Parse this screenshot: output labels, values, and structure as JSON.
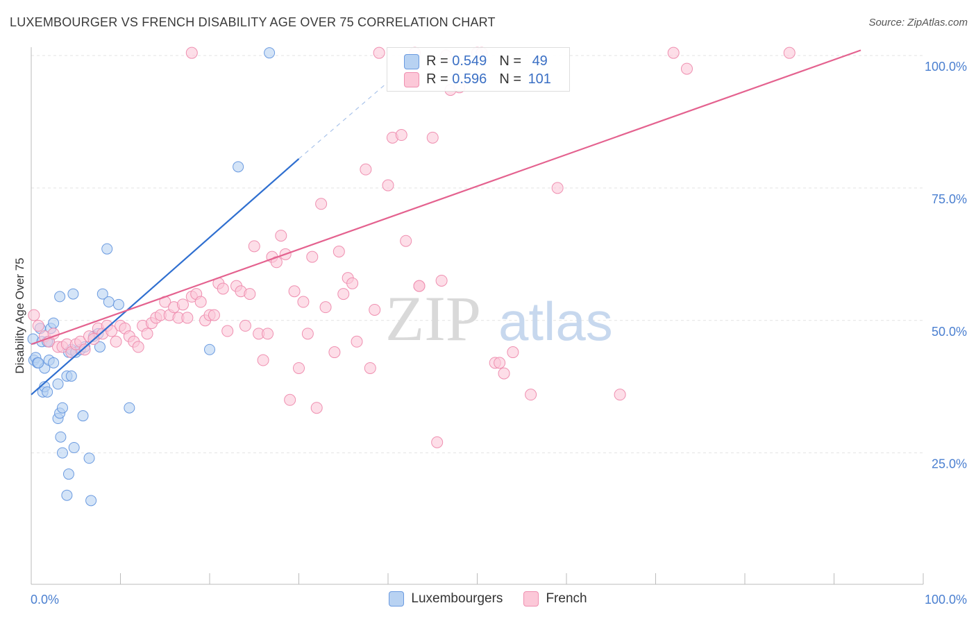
{
  "title": "LUXEMBOURGER VS FRENCH DISABILITY AGE OVER 75 CORRELATION CHART",
  "source": "Source: ZipAtlas.com",
  "watermark": {
    "zip": "ZIP",
    "atlas": "atlas"
  },
  "stats": [
    {
      "r_label": "R = ",
      "r": "0.549",
      "n_label": "N = ",
      "n": "49",
      "color": "#4a86d8"
    },
    {
      "r_label": "R = ",
      "r": "0.596",
      "n_label": "N = ",
      "n": "101",
      "color": "#f06aa0"
    }
  ],
  "legend": [
    {
      "label": "Luxembourgers",
      "fill": "#b8d2f2",
      "stroke": "#6a9ae0"
    },
    {
      "label": "French",
      "fill": "#fcc8d8",
      "stroke": "#ef8fb0"
    }
  ],
  "chart_data": {
    "type": "scatter",
    "title": "LUXEMBOURGER VS FRENCH DISABILITY AGE OVER 75 CORRELATION CHART",
    "xlabel": "",
    "ylabel": "Disability Age Over 75",
    "xlim": [
      0,
      100
    ],
    "ylim": [
      0,
      102
    ],
    "x_ticks": [
      "0.0%",
      "100.0%"
    ],
    "y_ticks": [
      {
        "value": 25,
        "label": "25.0%"
      },
      {
        "value": 50,
        "label": "50.0%"
      },
      {
        "value": 75,
        "label": "75.0%"
      },
      {
        "value": 100,
        "label": "100.0%"
      }
    ],
    "grid": true,
    "series": [
      {
        "name": "Luxembourgers",
        "color": "#4a86d8",
        "fill": "#b8d2f2",
        "points": [
          [
            0.2,
            46.5
          ],
          [
            0.3,
            42.5
          ],
          [
            0.5,
            43
          ],
          [
            0.7,
            42
          ],
          [
            1,
            48.5
          ],
          [
            1.2,
            46
          ],
          [
            1.3,
            36.5
          ],
          [
            1.5,
            41
          ],
          [
            1.5,
            37.5
          ],
          [
            1.8,
            36.5
          ],
          [
            2,
            46
          ],
          [
            2,
            42.5
          ],
          [
            2.2,
            48.5
          ],
          [
            2.5,
            42
          ],
          [
            2.5,
            49.5
          ],
          [
            3,
            38
          ],
          [
            3,
            31.5
          ],
          [
            3.2,
            32.5
          ],
          [
            3.2,
            54.5
          ],
          [
            3.3,
            28
          ],
          [
            3.5,
            25
          ],
          [
            3.5,
            33.5
          ],
          [
            4,
            17
          ],
          [
            4.2,
            21
          ],
          [
            4,
            39.5
          ],
          [
            4.2,
            44
          ],
          [
            4.5,
            39.5
          ],
          [
            4.5,
            44.5
          ],
          [
            4.7,
            55
          ],
          [
            4.8,
            26
          ],
          [
            5,
            44
          ],
          [
            5.5,
            44.5
          ],
          [
            5.8,
            32
          ],
          [
            6,
            45
          ],
          [
            6.5,
            24
          ],
          [
            6.7,
            16
          ],
          [
            7,
            47
          ],
          [
            7.5,
            47.5
          ],
          [
            7.7,
            45
          ],
          [
            8,
            55
          ],
          [
            8.5,
            63.5
          ],
          [
            8.7,
            53.5
          ],
          [
            9.8,
            53
          ],
          [
            11,
            33.5
          ],
          [
            20,
            44.5
          ],
          [
            23.2,
            79
          ],
          [
            26.7,
            100.5
          ],
          [
            0.8,
            42
          ],
          [
            1.8,
            46
          ]
        ]
      },
      {
        "name": "French",
        "color": "#e86a9a",
        "fill": "#fcc8d8",
        "points": [
          [
            0.3,
            51
          ],
          [
            0.8,
            49
          ],
          [
            1.5,
            47
          ],
          [
            2,
            46
          ],
          [
            2.5,
            47.5
          ],
          [
            3,
            45
          ],
          [
            3.5,
            45
          ],
          [
            4,
            45.5
          ],
          [
            4.5,
            44
          ],
          [
            5,
            45.5
          ],
          [
            5.5,
            46
          ],
          [
            6,
            44.5
          ],
          [
            6.5,
            47
          ],
          [
            7,
            46.5
          ],
          [
            7.5,
            48.5
          ],
          [
            8,
            47.5
          ],
          [
            8.5,
            49
          ],
          [
            9,
            48
          ],
          [
            9.5,
            46
          ],
          [
            10,
            49
          ],
          [
            10.5,
            48.5
          ],
          [
            11,
            47
          ],
          [
            11.5,
            46
          ],
          [
            12,
            45
          ],
          [
            12.5,
            49
          ],
          [
            13,
            47.5
          ],
          [
            13.5,
            49.5
          ],
          [
            14,
            50.5
          ],
          [
            14.5,
            51
          ],
          [
            15,
            53.5
          ],
          [
            15.5,
            51
          ],
          [
            16,
            52.5
          ],
          [
            16.5,
            50.5
          ],
          [
            17,
            53
          ],
          [
            17.5,
            50.5
          ],
          [
            18,
            54.5
          ],
          [
            18.5,
            55
          ],
          [
            19,
            53.5
          ],
          [
            19.5,
            50
          ],
          [
            20,
            51
          ],
          [
            20.5,
            51
          ],
          [
            21,
            57
          ],
          [
            21.5,
            56
          ],
          [
            22,
            48
          ],
          [
            23,
            56.5
          ],
          [
            23.5,
            55.5
          ],
          [
            24,
            49
          ],
          [
            24.5,
            55
          ],
          [
            25,
            64
          ],
          [
            25.5,
            47.5
          ],
          [
            26,
            42.5
          ],
          [
            26.5,
            47.5
          ],
          [
            27,
            62
          ],
          [
            27.5,
            61
          ],
          [
            28,
            66
          ],
          [
            28.5,
            62.5
          ],
          [
            29,
            35
          ],
          [
            29.5,
            55.5
          ],
          [
            30,
            41
          ],
          [
            30.5,
            53.5
          ],
          [
            31,
            47.5
          ],
          [
            31.5,
            62
          ],
          [
            32,
            33.5
          ],
          [
            32.5,
            72
          ],
          [
            33,
            52.5
          ],
          [
            34,
            44
          ],
          [
            34.5,
            63
          ],
          [
            35,
            55
          ],
          [
            35.5,
            58
          ],
          [
            36,
            57
          ],
          [
            36.5,
            46
          ],
          [
            37.5,
            78.5
          ],
          [
            38,
            41
          ],
          [
            38.5,
            52
          ],
          [
            39,
            100.5
          ],
          [
            40,
            75.5
          ],
          [
            40.5,
            84.5
          ],
          [
            41.5,
            85
          ],
          [
            42,
            65
          ],
          [
            43,
            100.5
          ],
          [
            43.5,
            56.5
          ],
          [
            43.5,
            56.5
          ],
          [
            45,
            84.5
          ],
          [
            45.5,
            27
          ],
          [
            46,
            57.5
          ],
          [
            46.5,
            100
          ],
          [
            47,
            93.5
          ],
          [
            48,
            94
          ],
          [
            50,
            100.5
          ],
          [
            50.5,
            100.5
          ],
          [
            52,
            42
          ],
          [
            52.5,
            42
          ],
          [
            53,
            40
          ],
          [
            54,
            44
          ],
          [
            56,
            36
          ],
          [
            59,
            75
          ],
          [
            66,
            36
          ],
          [
            72,
            100.5
          ],
          [
            73.5,
            97.5
          ],
          [
            85,
            100.5
          ],
          [
            18,
            100.5
          ]
        ]
      }
    ],
    "trendlines": [
      {
        "series": "Luxembourgers",
        "x": [
          0,
          30
        ],
        "y": [
          36,
          80.5
        ],
        "dashed_extension_to": [
          40,
          95
        ]
      },
      {
        "series": "French",
        "x": [
          0,
          93
        ],
        "y": [
          45.5,
          101
        ]
      }
    ]
  }
}
